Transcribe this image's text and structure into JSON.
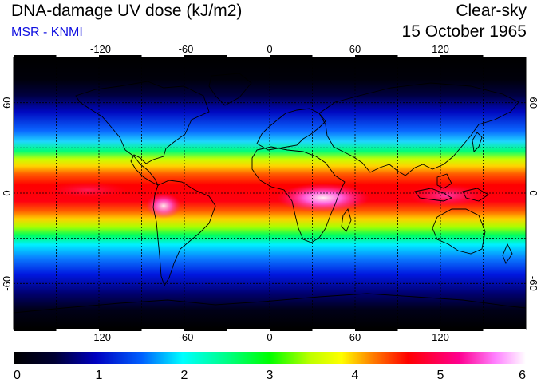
{
  "header": {
    "title": "DNA-damage UV dose (kJ/m2)",
    "subtitle": "MSR - KNMI",
    "condition": "Clear-sky",
    "date": "15 October 1965"
  },
  "map": {
    "lon_ticks": [
      "-120",
      "-60",
      "0",
      "60",
      "120"
    ],
    "lat_ticks_left": [
      "60",
      "0",
      "-60"
    ],
    "lat_ticks_right": [
      "60",
      "0",
      "-60"
    ]
  },
  "colorbar": {
    "min": 0,
    "max": 6,
    "labels": [
      "0",
      "1",
      "2",
      "3",
      "4",
      "5",
      "6"
    ]
  }
}
